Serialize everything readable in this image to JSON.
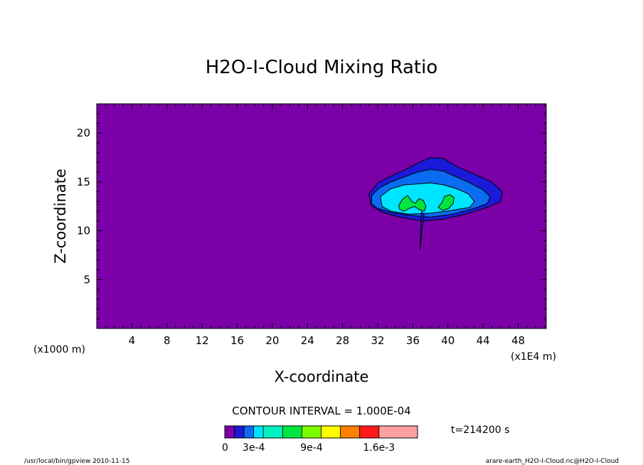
{
  "colors": {
    "background": "#7b00a8",
    "levels": [
      "#7b00a8",
      "#1a1ad8",
      "#0a6cf0",
      "#00e5ff",
      "#00f0c0",
      "#00e640",
      "#7cff00",
      "#ffff00",
      "#ff8000",
      "#ff1a1a",
      "#ffa0a0"
    ]
  },
  "chart_data": {
    "type": "contour",
    "title": "H2O-I-Cloud Mixing Ratio",
    "xlabel": "X-coordinate",
    "ylabel": "Z-coordinate",
    "x_unit_left": "(x1000 m)",
    "x_unit_right": "(x1E4 m)",
    "xlim": [
      0,
      51.2
    ],
    "ylim": [
      0,
      23
    ],
    "x_ticks": [
      4,
      8,
      12,
      16,
      20,
      24,
      28,
      32,
      36,
      40,
      44,
      48
    ],
    "y_ticks": [
      5,
      10,
      15,
      20
    ],
    "contour_interval_text": "CONTOUR INTERVAL = 1.000E-04",
    "time_text": "t=214200 s",
    "colorbar_labels": [
      "0",
      "3e-4",
      "9e-4",
      "1.6e-3"
    ],
    "colorbar_boundaries": [
      0,
      0.0001,
      0.0002,
      0.0003,
      0.0004,
      0.0006,
      0.0008,
      0.001,
      0.0012,
      0.0014,
      0.0016,
      0.002
    ],
    "cloud_shapes": [
      {
        "level": 1,
        "points": [
          [
            31,
            13.8
          ],
          [
            32,
            14.9
          ],
          [
            33.5,
            15.6
          ],
          [
            35,
            16.2
          ],
          [
            36.5,
            16.9
          ],
          [
            38,
            17.5
          ],
          [
            39.5,
            17.4
          ],
          [
            41,
            16.6
          ],
          [
            43,
            15.8
          ],
          [
            45,
            15.0
          ],
          [
            46.2,
            14.0
          ],
          [
            46,
            13.0
          ],
          [
            44.5,
            12.4
          ],
          [
            42,
            11.7
          ],
          [
            39.5,
            11.2
          ],
          [
            37,
            11.0
          ],
          [
            34.5,
            11.4
          ],
          [
            32.5,
            11.9
          ],
          [
            31.2,
            12.6
          ]
        ]
      },
      {
        "level": 2,
        "points": [
          [
            31.3,
            13.6
          ],
          [
            32.2,
            14.4
          ],
          [
            33.5,
            15.0
          ],
          [
            35,
            15.5
          ],
          [
            36.5,
            16.0
          ],
          [
            38,
            16.3
          ],
          [
            39.5,
            16.1
          ],
          [
            41,
            15.5
          ],
          [
            42.5,
            14.9
          ],
          [
            44,
            14.2
          ],
          [
            44.8,
            13.5
          ],
          [
            44.5,
            12.8
          ],
          [
            43,
            12.3
          ],
          [
            40.5,
            11.7
          ],
          [
            38,
            11.4
          ],
          [
            35.5,
            11.6
          ],
          [
            33.5,
            11.9
          ],
          [
            32,
            12.3
          ],
          [
            31.3,
            12.8
          ]
        ]
      },
      {
        "level": 3,
        "points": [
          [
            32.3,
            13.5
          ],
          [
            33.5,
            14.3
          ],
          [
            35,
            14.7
          ],
          [
            36.5,
            14.8
          ],
          [
            38,
            14.9
          ],
          [
            39.5,
            14.7
          ],
          [
            41,
            14.3
          ],
          [
            42.3,
            13.8
          ],
          [
            43,
            13.0
          ],
          [
            42.5,
            12.4
          ],
          [
            40.5,
            12.1
          ],
          [
            38,
            11.8
          ],
          [
            35.5,
            11.7
          ],
          [
            33.5,
            12.0
          ],
          [
            32.5,
            12.5
          ]
        ]
      },
      {
        "level": 5,
        "points": [
          [
            34.4,
            12.6
          ],
          [
            34.8,
            13.2
          ],
          [
            35.4,
            13.6
          ],
          [
            35.9,
            13.0
          ],
          [
            36.3,
            12.8
          ],
          [
            36.7,
            13.3
          ],
          [
            37.2,
            13.1
          ],
          [
            37.5,
            12.5
          ],
          [
            37.3,
            12.0
          ],
          [
            36.7,
            12.2
          ],
          [
            36.2,
            12.5
          ],
          [
            35.6,
            12.3
          ],
          [
            35.0,
            12.0
          ],
          [
            34.5,
            12.2
          ]
        ]
      },
      {
        "level": 5,
        "points": [
          [
            38.9,
            12.4
          ],
          [
            39.4,
            13.0
          ],
          [
            39.6,
            13.5
          ],
          [
            40.2,
            13.7
          ],
          [
            40.7,
            13.4
          ],
          [
            40.6,
            12.8
          ],
          [
            40.1,
            12.3
          ],
          [
            39.4,
            12.1
          ]
        ]
      }
    ],
    "spike": [
      [
        37.0,
        12.0
      ],
      [
        36.9,
        10.5
      ],
      [
        36.8,
        8.0
      ],
      [
        37.1,
        10.6
      ],
      [
        37.3,
        11.8
      ]
    ]
  },
  "footer": {
    "left": "/usr/local/bin/gpview   2010-11-15",
    "right": "arare-earth_H2O-I-Cloud.nc@H2O-I-Cloud"
  }
}
